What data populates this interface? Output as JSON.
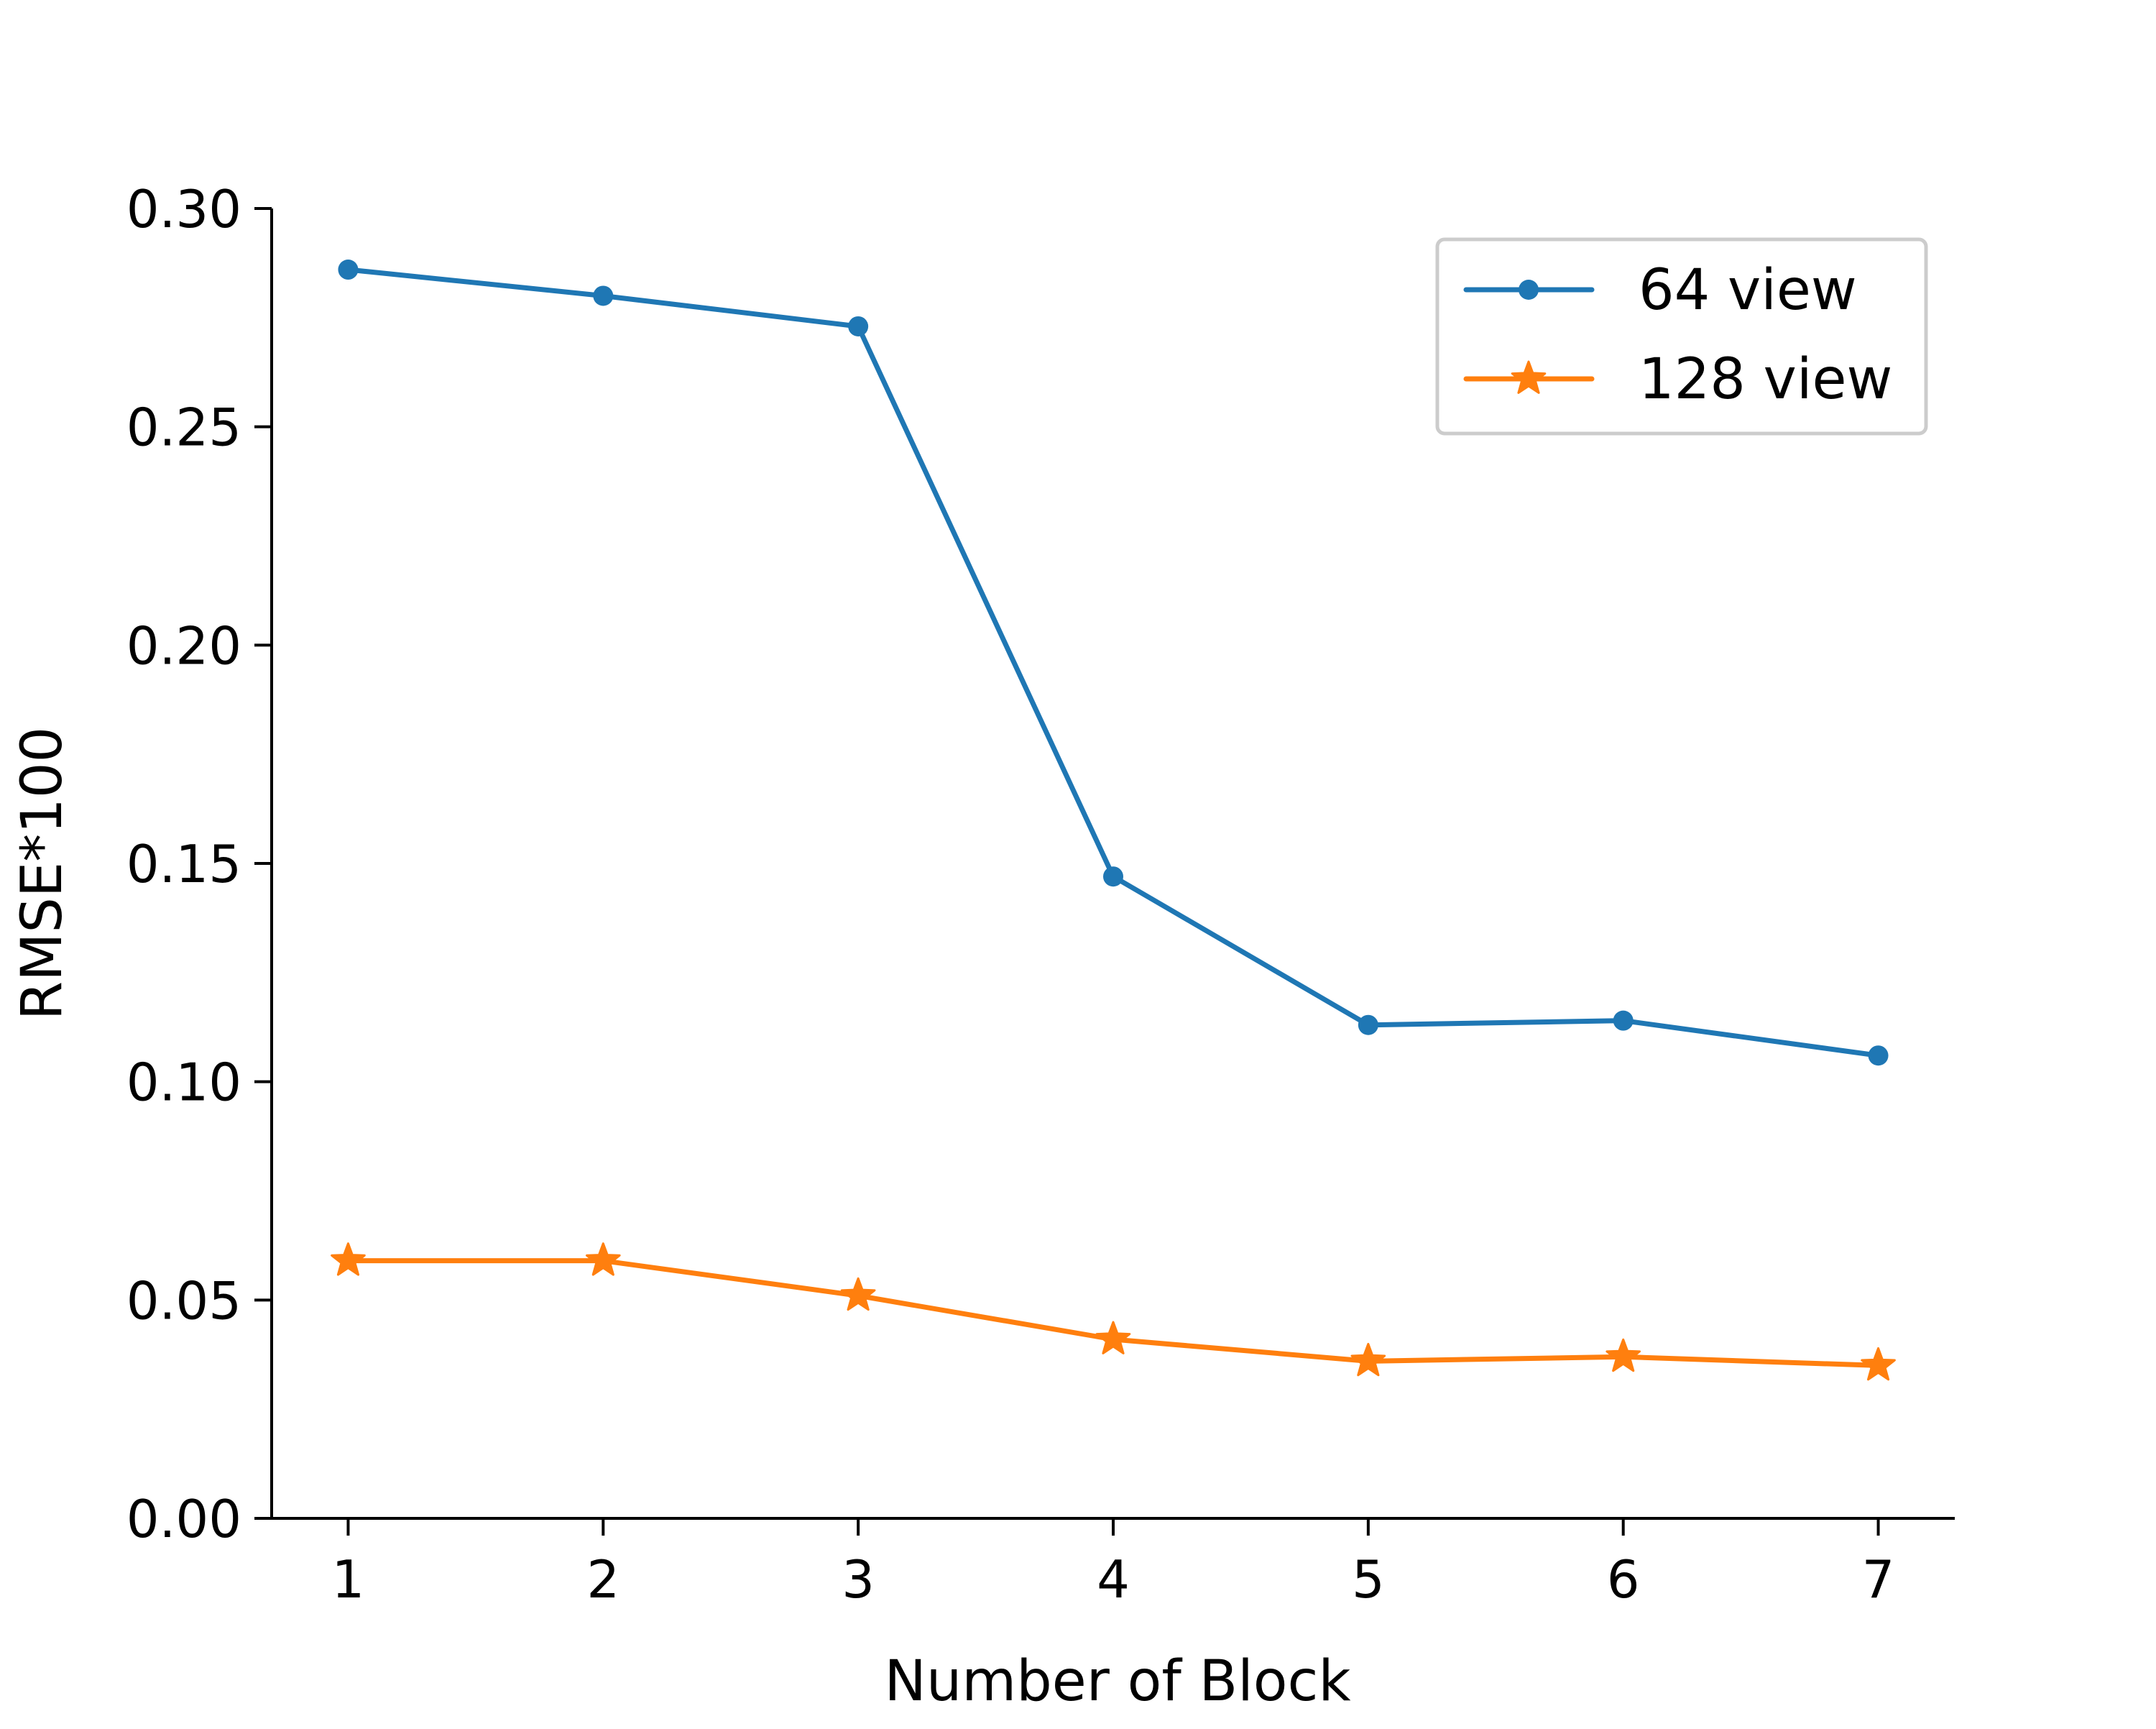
{
  "chart_data": {
    "type": "line",
    "xlabel": "Number of Block",
    "ylabel": "RMSE*100",
    "x": [
      1,
      2,
      3,
      4,
      5,
      6,
      7
    ],
    "xticks": [
      "1",
      "2",
      "3",
      "4",
      "5",
      "6",
      "7"
    ],
    "xlim": [
      0.7,
      7.3
    ],
    "ylim": [
      0.0,
      0.3
    ],
    "yticks": [
      "0.00",
      "0.05",
      "0.10",
      "0.15",
      "0.20",
      "0.25",
      "0.30"
    ],
    "grid": false,
    "legend_position": "top-right",
    "series": [
      {
        "name": "64 view",
        "marker": "circle",
        "color": "#1f77b4",
        "values": [
          0.286,
          0.28,
          0.273,
          0.147,
          0.113,
          0.114,
          0.106
        ]
      },
      {
        "name": "128 view",
        "marker": "star",
        "color": "#ff7f0e",
        "values": [
          0.059,
          0.059,
          0.051,
          0.041,
          0.036,
          0.037,
          0.035
        ]
      }
    ]
  }
}
